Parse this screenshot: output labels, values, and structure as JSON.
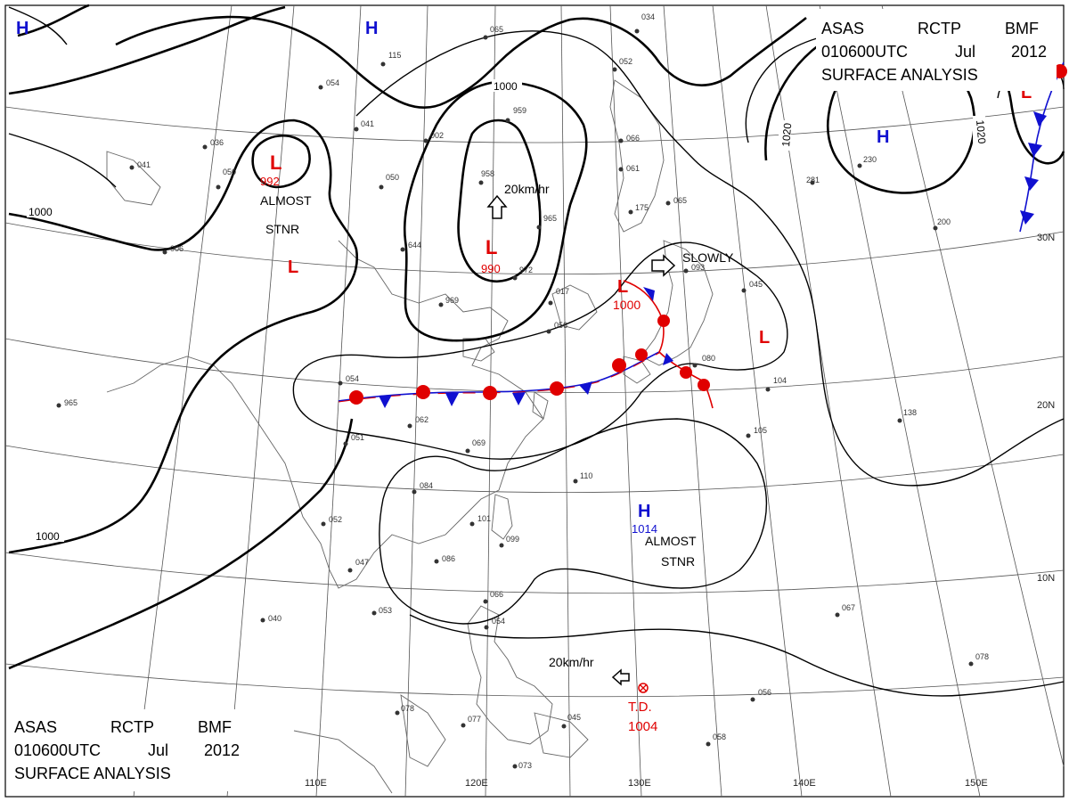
{
  "header_top": {
    "line1": [
      "ASAS",
      "RCTP",
      "BMF"
    ],
    "line2": [
      "010600UTC",
      "Jul",
      "2012"
    ],
    "line3": "SURFACE ANALYSIS"
  },
  "header_bottom": {
    "line1": [
      "ASAS",
      "RCTP",
      "BMF"
    ],
    "line2": [
      "010600UTC",
      "Jul",
      "2012"
    ],
    "line3": "SURFACE ANALYSIS"
  },
  "lon_labels": [
    "110E",
    "120E",
    "130E",
    "140E",
    "150E"
  ],
  "lat_labels": [
    "30N",
    "20N",
    "10N"
  ],
  "isobar_labels": [
    "1000",
    "1000",
    "1000",
    "1020",
    "1020"
  ],
  "pressure_centers": [
    {
      "type": "L",
      "value": "992",
      "note": "ALMOST STNR",
      "color": "#e00000"
    },
    {
      "type": "L",
      "value": "990",
      "note": "",
      "color": "#e00000"
    },
    {
      "type": "L",
      "value": "1000",
      "note": "",
      "color": "#e00000"
    },
    {
      "type": "L",
      "value": "",
      "note": "",
      "color": "#e00000"
    },
    {
      "type": "L",
      "value": "",
      "note": "",
      "color": "#e00000"
    },
    {
      "type": "L",
      "value": "",
      "note": "",
      "color": "#e00000"
    },
    {
      "type": "H",
      "value": "1014",
      "note": "ALMOST STNR",
      "color": "#1010d0"
    },
    {
      "type": "H",
      "value": "",
      "note": "",
      "color": "#1010d0"
    },
    {
      "type": "H",
      "value": "",
      "note": "",
      "color": "#1010d0"
    },
    {
      "type": "H",
      "value": "",
      "note": "",
      "color": "#1010d0"
    }
  ],
  "tropical_depression": {
    "label": "T.D.",
    "value": "1004",
    "color": "#e00000"
  },
  "motion_labels": [
    "20km/hr",
    "SLOWLY",
    "20km/hr"
  ],
  "station_numbers": [
    "065",
    "034",
    "052",
    "050",
    "054",
    "041",
    "036",
    "041",
    "115",
    "959",
    "002",
    "050",
    "066",
    "061",
    "175",
    "065",
    "958",
    "965",
    "644",
    "972",
    "969",
    "017",
    "056",
    "054",
    "062",
    "051",
    "069",
    "084",
    "101",
    "099",
    "110",
    "086",
    "047",
    "052",
    "053",
    "040",
    "066",
    "054",
    "078",
    "077",
    "045",
    "058",
    "073",
    "093",
    "045",
    "104",
    "080",
    "138",
    "105",
    "067",
    "078",
    "056",
    "230",
    "281",
    "200",
    "965",
    "006"
  ]
}
